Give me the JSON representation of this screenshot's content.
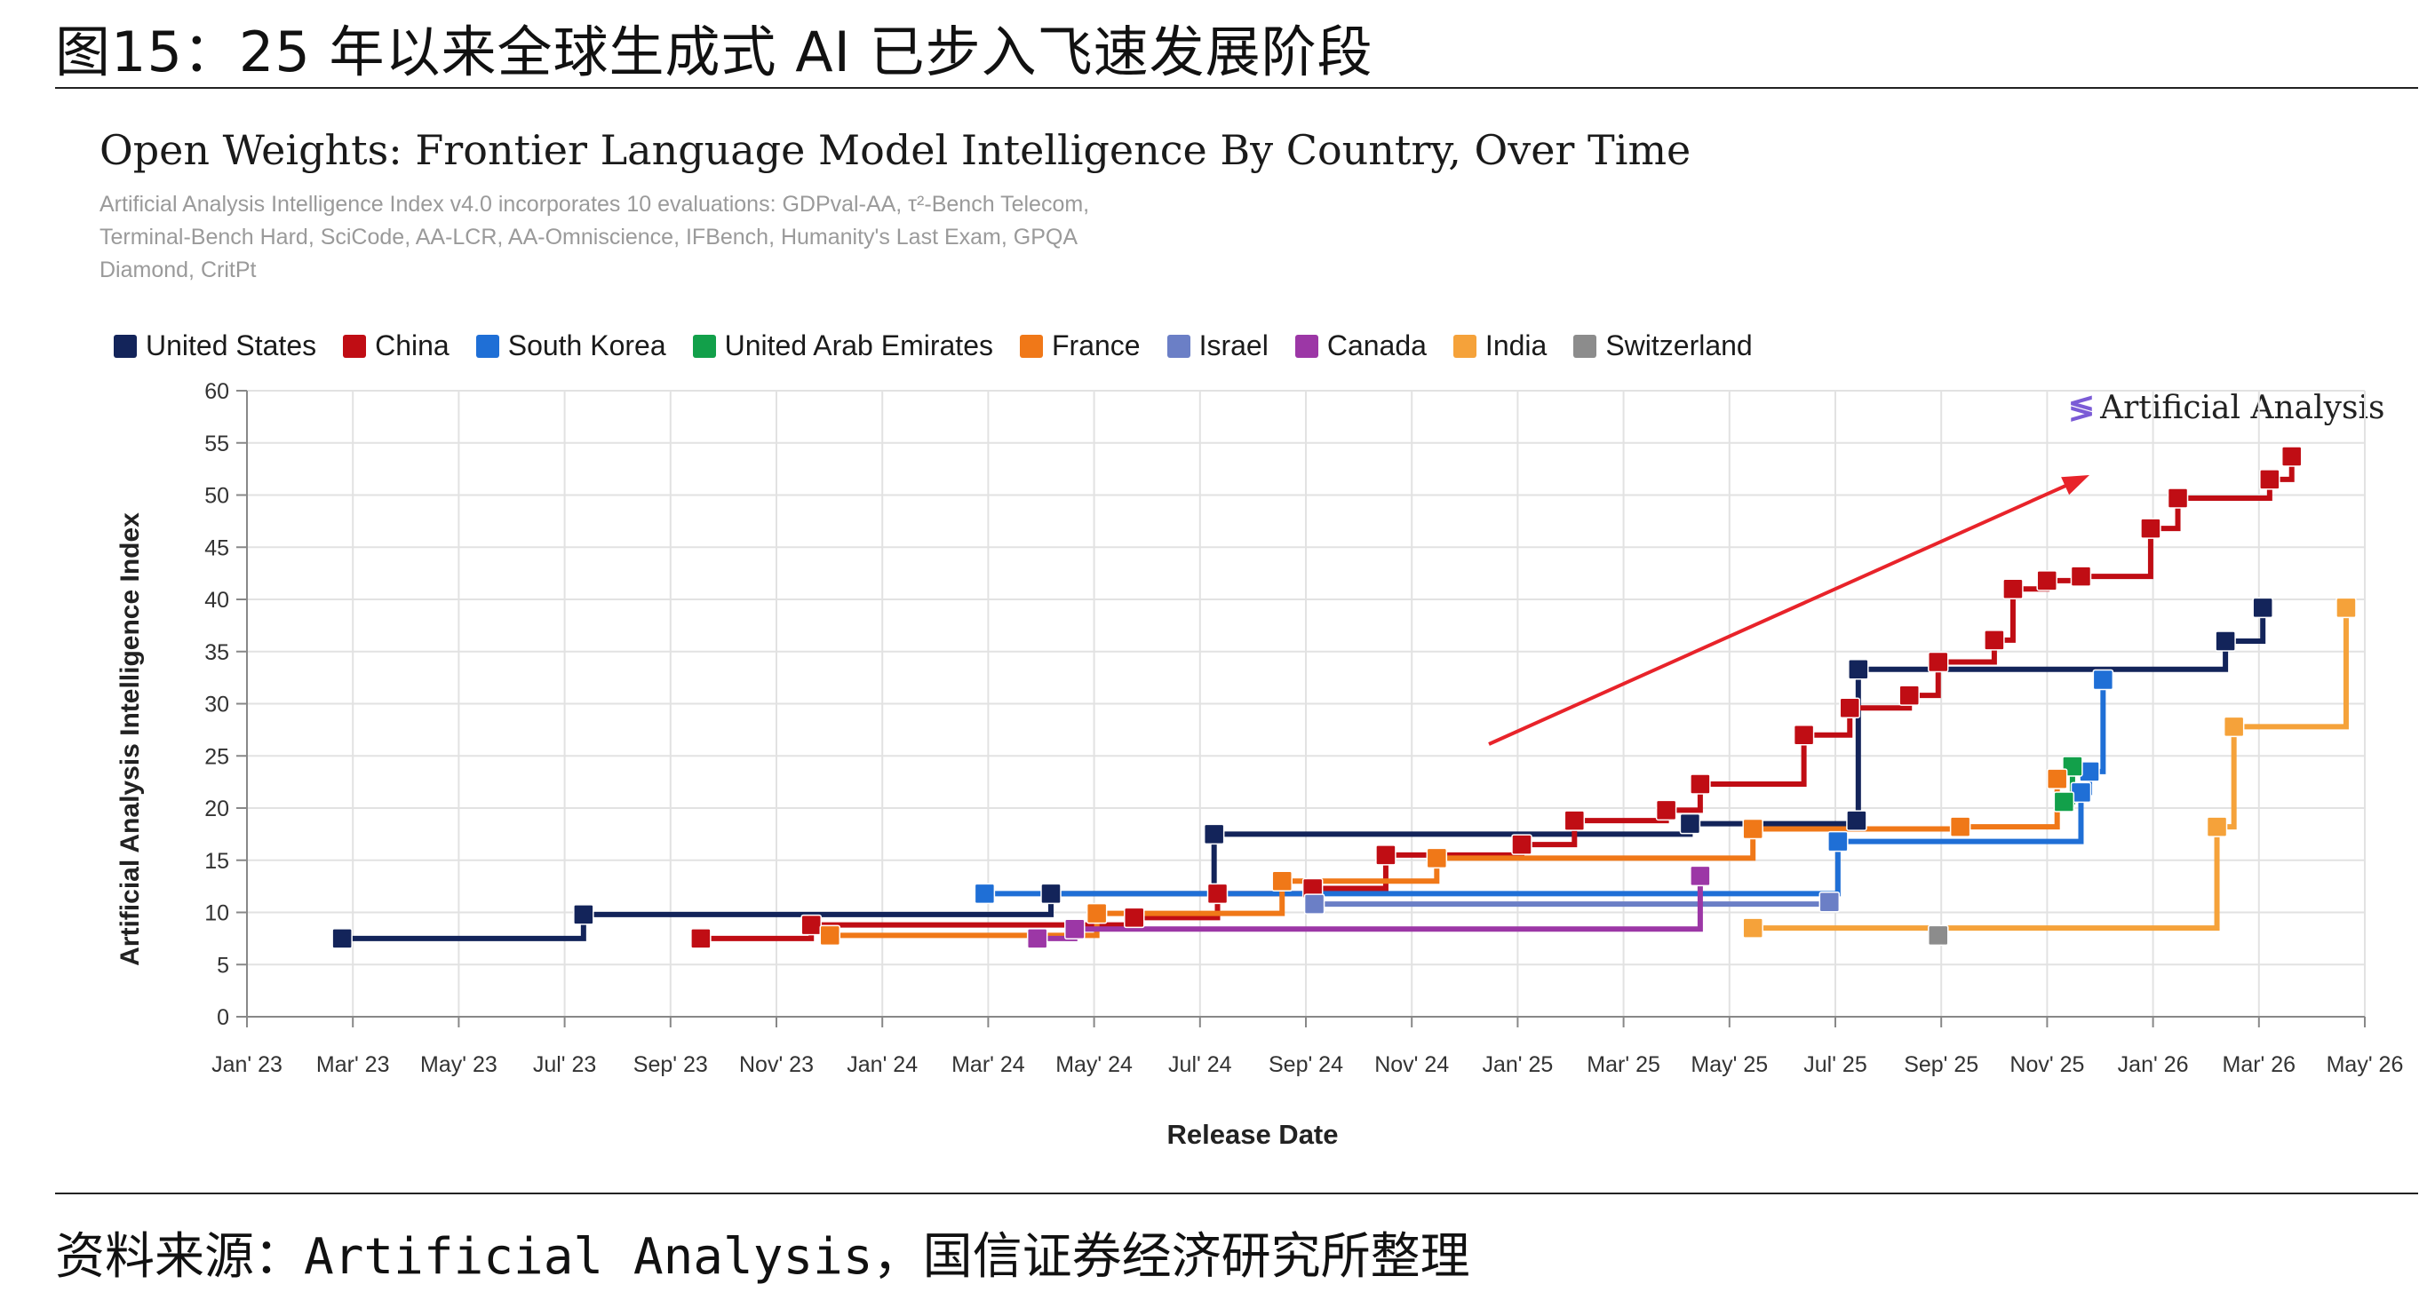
{
  "figure_title": "图15：25 年以来全球生成式 AI 已步入飞速发展阶段",
  "chart_title": "Open Weights: Frontier Language Model Intelligence By Country, Over Time",
  "chart_subtitle": "Artificial Analysis Intelligence Index v4.0 incorporates 10 evaluations: GDPval-AA, τ²-Bench Telecom, Terminal-Bench Hard, SciCode, AA-LCR, AA-Omniscience, IFBench, Humanity's Last Exam, GPQA Diamond, CritPt",
  "brand": "Artificial Analysis",
  "source": "资料来源：Artificial Analysis，国信证券经济研究所整理",
  "chart_data": {
    "type": "line",
    "step": true,
    "title": "Open Weights: Frontier Language Model Intelligence By Country, Over Time",
    "xlabel": "Release Date",
    "ylabel": "Artificial Analysis Intelligence Index",
    "ylim": [
      0,
      60
    ],
    "yticks": [
      0,
      5,
      10,
      15,
      20,
      25,
      30,
      35,
      40,
      45,
      50,
      55,
      60
    ],
    "xlim": [
      "2023-01-01",
      "2026-05-31"
    ],
    "xtick_labels": [
      "Jan' 23",
      "Mar' 23",
      "May' 23",
      "Jul' 23",
      "Sep' 23",
      "Nov' 23",
      "Jan' 24",
      "Mar' 24",
      "May' 24",
      "Jul' 24",
      "Sep' 24",
      "Nov' 24",
      "Jan' 25",
      "Mar' 25",
      "May' 25",
      "Jul' 25",
      "Sep' 25",
      "Nov' 25",
      "Jan' 26",
      "Mar' 26",
      "May' 26"
    ],
    "grid": true,
    "legend_position": "top",
    "annotation": "red trend arrow rising toward upper right",
    "series": [
      {
        "name": "United States",
        "color": "#13245a",
        "points": [
          [
            "2023-02-26",
            7.5
          ],
          [
            "2023-07-18",
            9.8
          ],
          [
            "2024-04-18",
            11.8
          ],
          [
            "2024-07-23",
            17.5
          ],
          [
            "2025-04-29",
            18.5
          ],
          [
            "2025-08-05",
            18.8
          ],
          [
            "2025-08-06",
            33.3
          ],
          [
            "2026-03-10",
            36
          ],
          [
            "2026-04-01",
            39.2
          ]
        ]
      },
      {
        "name": "China",
        "color": "#c00d14",
        "points": [
          [
            "2023-09-25",
            7.5
          ],
          [
            "2023-11-29",
            8.8
          ],
          [
            "2024-06-06",
            9.5
          ],
          [
            "2024-07-25",
            11.8
          ],
          [
            "2024-09-19",
            12.3
          ],
          [
            "2024-11-01",
            15.5
          ],
          [
            "2025-01-20",
            16.5
          ],
          [
            "2025-02-20",
            18.8
          ],
          [
            "2025-04-15",
            19.8
          ],
          [
            "2025-05-05",
            22.3
          ],
          [
            "2025-07-05",
            27.0
          ],
          [
            "2025-08-01",
            29.6
          ],
          [
            "2025-09-05",
            30.8
          ],
          [
            "2025-09-22",
            34.0
          ],
          [
            "2025-10-25",
            36.1
          ],
          [
            "2025-11-05",
            41
          ],
          [
            "2025-11-25",
            41.8
          ],
          [
            "2025-12-15",
            42.2
          ],
          [
            "2026-01-25",
            46.8
          ],
          [
            "2026-02-10",
            49.7
          ],
          [
            "2026-04-05",
            51.5
          ],
          [
            "2026-04-18",
            53.7
          ]
        ]
      },
      {
        "name": "South Korea",
        "color": "#1f6fd6",
        "points": [
          [
            "2024-03-10",
            11.8
          ],
          [
            "2025-07-25",
            16.8
          ],
          [
            "2025-12-15",
            21.5
          ],
          [
            "2025-12-20",
            23.5
          ],
          [
            "2025-12-28",
            32.3
          ]
        ]
      },
      {
        "name": "United Arab Emirates",
        "color": "#12a04a",
        "points": [
          [
            "2025-12-05",
            20.6
          ],
          [
            "2025-12-10",
            24.0
          ]
        ]
      },
      {
        "name": "France",
        "color": "#f07818",
        "points": [
          [
            "2023-12-10",
            7.8
          ],
          [
            "2024-05-15",
            9.9
          ],
          [
            "2024-09-01",
            13.0
          ],
          [
            "2024-12-01",
            15.2
          ],
          [
            "2025-06-05",
            18.0
          ],
          [
            "2025-10-05",
            18.2
          ],
          [
            "2025-12-01",
            22.8
          ]
        ]
      },
      {
        "name": "Israel",
        "color": "#6b7fc6",
        "points": [
          [
            "2024-09-20",
            10.8
          ],
          [
            "2025-07-20",
            11.0
          ]
        ]
      },
      {
        "name": "Canada",
        "color": "#9c37a6",
        "points": [
          [
            "2024-04-10",
            7.5
          ],
          [
            "2024-05-02",
            8.4
          ],
          [
            "2025-05-05",
            13.5
          ]
        ]
      },
      {
        "name": "India",
        "color": "#f5a23a",
        "points": [
          [
            "2025-06-05",
            8.5
          ],
          [
            "2026-03-05",
            18.2
          ],
          [
            "2026-03-15",
            27.8
          ],
          [
            "2026-05-20",
            39.2
          ]
        ]
      },
      {
        "name": "Switzerland",
        "color": "#8c8c8c",
        "points": [
          [
            "2025-09-22",
            7.8
          ]
        ]
      }
    ]
  }
}
